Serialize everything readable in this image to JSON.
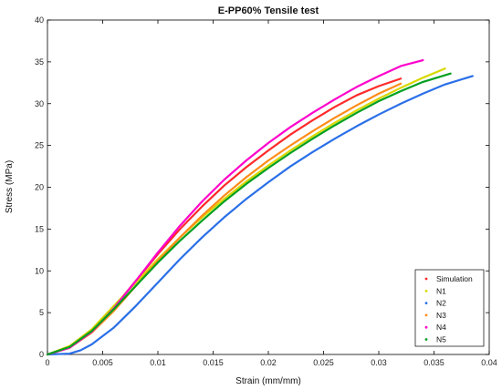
{
  "chart_data": {
    "type": "line",
    "title": "E-PP60% Tensile test",
    "xlabel": "Strain (mm/mm)",
    "ylabel": "Stress (MPa)",
    "xlim": [
      0,
      0.04
    ],
    "ylim": [
      0,
      40
    ],
    "xticks": [
      0,
      0.005,
      0.01,
      0.015,
      0.02,
      0.025,
      0.03,
      0.035,
      0.04
    ],
    "xtick_labels": [
      "0",
      "0.005",
      "0.01",
      "0.015",
      "0.02",
      "0.025",
      "0.03",
      "0.035",
      "0.04"
    ],
    "yticks": [
      0,
      5,
      10,
      15,
      20,
      25,
      30,
      35,
      40
    ],
    "ytick_labels": [
      "0",
      "5",
      "10",
      "15",
      "20",
      "25",
      "30",
      "35",
      "40"
    ],
    "grid": false,
    "legend_position": "bottom-right",
    "series": [
      {
        "name": "Simulation",
        "color": "#ff2a2a",
        "x": [
          0,
          0.002,
          0.004,
          0.006,
          0.008,
          0.01,
          0.012,
          0.014,
          0.016,
          0.018,
          0.02,
          0.022,
          0.024,
          0.026,
          0.028,
          0.03,
          0.032
        ],
        "y": [
          0,
          0.8,
          2.8,
          5.6,
          8.8,
          12.0,
          15.0,
          17.7,
          20.2,
          22.4,
          24.4,
          26.3,
          28.0,
          29.6,
          31.0,
          32.1,
          33.0
        ]
      },
      {
        "name": "N1",
        "color": "#d8d800",
        "x": [
          0,
          0.002,
          0.004,
          0.006,
          0.008,
          0.01,
          0.012,
          0.014,
          0.016,
          0.018,
          0.02,
          0.022,
          0.024,
          0.026,
          0.028,
          0.03,
          0.032,
          0.034,
          0.036
        ],
        "y": [
          0,
          1.0,
          3.0,
          5.8,
          8.6,
          11.4,
          14.0,
          16.4,
          18.6,
          20.7,
          22.6,
          24.4,
          26.1,
          27.7,
          29.2,
          30.6,
          31.9,
          33.1,
          34.2
        ]
      },
      {
        "name": "N2",
        "color": "#2a6fe8",
        "x": [
          0,
          0.002,
          0.003,
          0.004,
          0.006,
          0.008,
          0.01,
          0.012,
          0.014,
          0.016,
          0.018,
          0.02,
          0.022,
          0.024,
          0.026,
          0.028,
          0.03,
          0.032,
          0.034,
          0.036,
          0.0385
        ],
        "y": [
          0,
          0.1,
          0.5,
          1.2,
          3.2,
          5.8,
          8.6,
          11.4,
          14.0,
          16.4,
          18.6,
          20.6,
          22.5,
          24.2,
          25.8,
          27.3,
          28.7,
          30.0,
          31.2,
          32.3,
          33.3
        ]
      },
      {
        "name": "N3",
        "color": "#ff8c1a",
        "x": [
          0,
          0.002,
          0.004,
          0.006,
          0.008,
          0.01,
          0.012,
          0.014,
          0.016,
          0.018,
          0.02,
          0.022,
          0.024,
          0.026,
          0.028,
          0.03,
          0.032
        ],
        "y": [
          0,
          0.8,
          2.6,
          5.2,
          8.2,
          11.2,
          14.0,
          16.6,
          19.0,
          21.2,
          23.2,
          25.0,
          26.7,
          28.3,
          29.8,
          31.2,
          32.4
        ]
      },
      {
        "name": "N4",
        "color": "#ff00cc",
        "x": [
          0,
          0.002,
          0.004,
          0.006,
          0.008,
          0.01,
          0.012,
          0.014,
          0.016,
          0.018,
          0.02,
          0.022,
          0.024,
          0.026,
          0.028,
          0.03,
          0.032,
          0.034
        ],
        "y": [
          0,
          0.8,
          2.7,
          5.5,
          8.8,
          12.2,
          15.4,
          18.3,
          20.9,
          23.2,
          25.3,
          27.2,
          28.9,
          30.5,
          32.0,
          33.3,
          34.5,
          35.2
        ]
      },
      {
        "name": "N5",
        "color": "#00a020",
        "x": [
          0,
          0.002,
          0.004,
          0.006,
          0.008,
          0.01,
          0.012,
          0.014,
          0.016,
          0.018,
          0.02,
          0.022,
          0.024,
          0.026,
          0.028,
          0.03,
          0.032,
          0.034,
          0.0365
        ],
        "y": [
          0,
          0.9,
          2.8,
          5.4,
          8.2,
          11.0,
          13.6,
          16.0,
          18.3,
          20.4,
          22.3,
          24.1,
          25.8,
          27.4,
          28.9,
          30.3,
          31.5,
          32.6,
          33.6
        ]
      }
    ]
  }
}
